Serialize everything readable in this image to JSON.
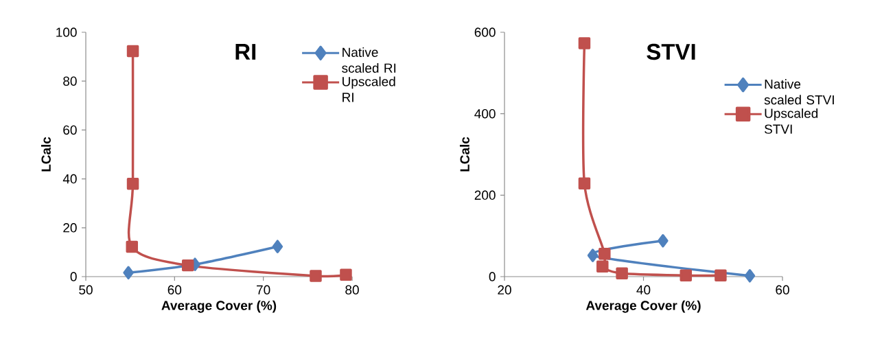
{
  "chart_data": [
    {
      "type": "line",
      "title": "RI",
      "xlabel": "Average Cover (%)",
      "ylabel": "LCalc",
      "xlim": [
        50,
        80
      ],
      "ylim": [
        0,
        100
      ],
      "xticks": [
        50,
        60,
        70,
        80
      ],
      "yticks": [
        0,
        20,
        40,
        60,
        80,
        100
      ],
      "legend": "top right",
      "series": [
        {
          "name": "Native scaled RI",
          "color": "#4f81bd",
          "marker": "diamond",
          "x": [
            54.8,
            62.3,
            71.6
          ],
          "values": [
            1.6,
            5,
            12.3
          ]
        },
        {
          "name": "Upscaled RI",
          "color": "#c0504d",
          "marker": "square",
          "x": [
            55.3,
            55.3,
            55.2,
            61.5,
            75.9,
            79.3
          ],
          "values": [
            92.3,
            38,
            12.2,
            4.6,
            0.3,
            0.8
          ]
        }
      ]
    },
    {
      "type": "line",
      "title": "STVI",
      "xlabel": "Average Cover (%)",
      "ylabel": "LCalc",
      "xlim": [
        20,
        60
      ],
      "ylim": [
        0,
        600
      ],
      "xticks": [
        20,
        40,
        60
      ],
      "yticks": [
        0,
        200,
        400,
        600
      ],
      "legend": "top right",
      "series": [
        {
          "name": "Native scaled STVI",
          "color": "#4f81bd",
          "marker": "diamond",
          "x": [
            42.8,
            34.3,
            32.7,
            55.3
          ],
          "values": [
            88,
            null,
            52,
            2
          ]
        },
        {
          "name": "Upscaled STVI",
          "color": "#c0504d",
          "marker": "square",
          "x": [
            31.5,
            31.5,
            34.4,
            34.1,
            36.9,
            46.1,
            51.1
          ],
          "values": [
            573,
            229,
            56,
            25,
            8,
            3,
            3
          ]
        }
      ]
    }
  ]
}
